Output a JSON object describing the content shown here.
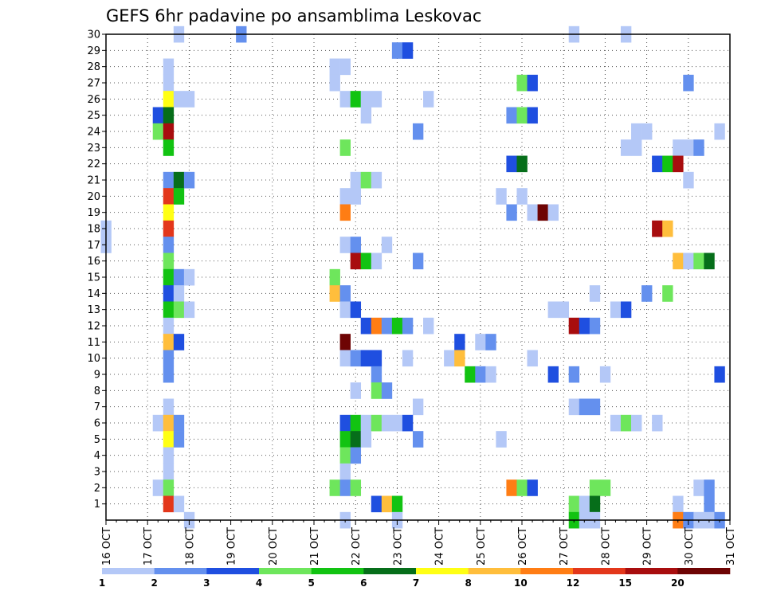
{
  "chart_data": {
    "type": "heatmap",
    "title": "GEFS 6hr padavine po ansamblima Leskovac",
    "xlabel": "",
    "ylabel": "",
    "x_ticks": [
      "16 OCT",
      "17 OCT",
      "18 OCT",
      "19 OCT",
      "20 OCT",
      "21 OCT",
      "22 OCT",
      "23 OCT",
      "24 OCT",
      "25 OCT",
      "26 OCT",
      "27 OCT",
      "28 OCT",
      "29 OCT",
      "30 OCT",
      "31 OCT"
    ],
    "y_ticks": [
      1,
      2,
      3,
      4,
      5,
      6,
      7,
      8,
      9,
      10,
      11,
      12,
      13,
      14,
      15,
      16,
      17,
      18,
      19,
      20,
      21,
      22,
      23,
      24,
      25,
      26,
      27,
      28,
      29,
      30
    ],
    "ylim": [
      0,
      30
    ],
    "x_step_hours": 6,
    "grid": true,
    "colorbar": {
      "levels": [
        "1",
        "2",
        "3",
        "4",
        "5",
        "6",
        "7",
        "8",
        "10",
        "12",
        "15",
        "20",
        ""
      ],
      "colors": [
        "#b4c8f7",
        "#6490ee",
        "#1f4fe0",
        "#6ee65c",
        "#12c312",
        "#066e1a",
        "#ffff14",
        "#ffbe3c",
        "#ff7d14",
        "#e3371b",
        "#a80d0e",
        "#6e0404"
      ]
    },
    "cells": [
      [
        7,
        30,
        1
      ],
      [
        13,
        30,
        2
      ],
      [
        45,
        30,
        1
      ],
      [
        50,
        30,
        1
      ],
      [
        28,
        29,
        2
      ],
      [
        29,
        29,
        3
      ],
      [
        6,
        28,
        1
      ],
      [
        22,
        28,
        1
      ],
      [
        23,
        28,
        1
      ],
      [
        6,
        27,
        1
      ],
      [
        22,
        27,
        1
      ],
      [
        40,
        27,
        4
      ],
      [
        41,
        27,
        3
      ],
      [
        56,
        27,
        2
      ],
      [
        6,
        26,
        7
      ],
      [
        7,
        26,
        1
      ],
      [
        8,
        26,
        1
      ],
      [
        23,
        26,
        1
      ],
      [
        24,
        26,
        5
      ],
      [
        25,
        26,
        1
      ],
      [
        26,
        26,
        1
      ],
      [
        31,
        26,
        1
      ],
      [
        5,
        25,
        3
      ],
      [
        6,
        25,
        6
      ],
      [
        25,
        25,
        1
      ],
      [
        39,
        25,
        2
      ],
      [
        40,
        25,
        4
      ],
      [
        41,
        25,
        3
      ],
      [
        5,
        24,
        4
      ],
      [
        6,
        24,
        11
      ],
      [
        30,
        24,
        2
      ],
      [
        51,
        24,
        1
      ],
      [
        52,
        24,
        1
      ],
      [
        59,
        24,
        1
      ],
      [
        6,
        23,
        5
      ],
      [
        23,
        23,
        4
      ],
      [
        50,
        23,
        1
      ],
      [
        51,
        23,
        1
      ],
      [
        55,
        23,
        1
      ],
      [
        56,
        23,
        1
      ],
      [
        57,
        23,
        2
      ],
      [
        39,
        22,
        3
      ],
      [
        40,
        22,
        6
      ],
      [
        53,
        22,
        3
      ],
      [
        54,
        22,
        5
      ],
      [
        55,
        22,
        11
      ],
      [
        6,
        21,
        2
      ],
      [
        7,
        21,
        6
      ],
      [
        8,
        21,
        2
      ],
      [
        24,
        21,
        1
      ],
      [
        25,
        21,
        4
      ],
      [
        26,
        21,
        1
      ],
      [
        56,
        21,
        1
      ],
      [
        6,
        20,
        10
      ],
      [
        7,
        20,
        5
      ],
      [
        23,
        20,
        1
      ],
      [
        24,
        20,
        1
      ],
      [
        38,
        20,
        1
      ],
      [
        40,
        20,
        1
      ],
      [
        6,
        19,
        7
      ],
      [
        23,
        19,
        9
      ],
      [
        39,
        19,
        2
      ],
      [
        41,
        19,
        1
      ],
      [
        42,
        19,
        12
      ],
      [
        43,
        19,
        1
      ],
      [
        0,
        18,
        1
      ],
      [
        6,
        18,
        10
      ],
      [
        53,
        18,
        11
      ],
      [
        54,
        18,
        8
      ],
      [
        0,
        17,
        1
      ],
      [
        6,
        17,
        2
      ],
      [
        23,
        17,
        1
      ],
      [
        24,
        17,
        2
      ],
      [
        27,
        17,
        1
      ],
      [
        6,
        16,
        4
      ],
      [
        24,
        16,
        11
      ],
      [
        25,
        16,
        5
      ],
      [
        26,
        16,
        1
      ],
      [
        30,
        16,
        2
      ],
      [
        55,
        16,
        8
      ],
      [
        56,
        16,
        1
      ],
      [
        57,
        16,
        4
      ],
      [
        58,
        16,
        6
      ],
      [
        6,
        15,
        5
      ],
      [
        7,
        15,
        2
      ],
      [
        8,
        15,
        1
      ],
      [
        22,
        15,
        4
      ],
      [
        6,
        14,
        3
      ],
      [
        7,
        14,
        1
      ],
      [
        22,
        14,
        8
      ],
      [
        23,
        14,
        2
      ],
      [
        47,
        14,
        1
      ],
      [
        52,
        14,
        2
      ],
      [
        54,
        14,
        4
      ],
      [
        6,
        13,
        5
      ],
      [
        7,
        13,
        4
      ],
      [
        8,
        13,
        1
      ],
      [
        23,
        13,
        1
      ],
      [
        24,
        13,
        3
      ],
      [
        43,
        13,
        1
      ],
      [
        44,
        13,
        1
      ],
      [
        49,
        13,
        1
      ],
      [
        50,
        13,
        3
      ],
      [
        6,
        12,
        1
      ],
      [
        25,
        12,
        3
      ],
      [
        26,
        12,
        9
      ],
      [
        27,
        12,
        2
      ],
      [
        28,
        12,
        5
      ],
      [
        29,
        12,
        2
      ],
      [
        31,
        12,
        1
      ],
      [
        45,
        12,
        11
      ],
      [
        46,
        12,
        3
      ],
      [
        47,
        12,
        2
      ],
      [
        6,
        11,
        8
      ],
      [
        7,
        11,
        3
      ],
      [
        23,
        11,
        12
      ],
      [
        34,
        11,
        3
      ],
      [
        36,
        11,
        1
      ],
      [
        37,
        11,
        2
      ],
      [
        6,
        10,
        2
      ],
      [
        23,
        10,
        1
      ],
      [
        24,
        10,
        2
      ],
      [
        25,
        10,
        3
      ],
      [
        26,
        10,
        3
      ],
      [
        29,
        10,
        1
      ],
      [
        33,
        10,
        1
      ],
      [
        34,
        10,
        8
      ],
      [
        41,
        10,
        1
      ],
      [
        6,
        9,
        2
      ],
      [
        26,
        9,
        2
      ],
      [
        35,
        9,
        5
      ],
      [
        36,
        9,
        2
      ],
      [
        37,
        9,
        1
      ],
      [
        43,
        9,
        3
      ],
      [
        45,
        9,
        2
      ],
      [
        48,
        9,
        1
      ],
      [
        59,
        9,
        3
      ],
      [
        24,
        8,
        1
      ],
      [
        26,
        8,
        4
      ],
      [
        27,
        8,
        2
      ],
      [
        6,
        7,
        1
      ],
      [
        30,
        7,
        1
      ],
      [
        45,
        7,
        1
      ],
      [
        46,
        7,
        2
      ],
      [
        47,
        7,
        2
      ],
      [
        5,
        6,
        1
      ],
      [
        6,
        6,
        8
      ],
      [
        7,
        6,
        2
      ],
      [
        23,
        6,
        3
      ],
      [
        24,
        6,
        5
      ],
      [
        25,
        6,
        1
      ],
      [
        26,
        6,
        4
      ],
      [
        27,
        6,
        1
      ],
      [
        28,
        6,
        1
      ],
      [
        29,
        6,
        3
      ],
      [
        49,
        6,
        1
      ],
      [
        50,
        6,
        4
      ],
      [
        51,
        6,
        1
      ],
      [
        53,
        6,
        1
      ],
      [
        6,
        5,
        7
      ],
      [
        7,
        5,
        2
      ],
      [
        23,
        5,
        5
      ],
      [
        24,
        5,
        6
      ],
      [
        25,
        5,
        1
      ],
      [
        30,
        5,
        2
      ],
      [
        38,
        5,
        1
      ],
      [
        6,
        4,
        1
      ],
      [
        23,
        4,
        4
      ],
      [
        24,
        4,
        2
      ],
      [
        6,
        3,
        1
      ],
      [
        23,
        3,
        1
      ],
      [
        5,
        2,
        1
      ],
      [
        6,
        2,
        4
      ],
      [
        22,
        2,
        4
      ],
      [
        23,
        2,
        2
      ],
      [
        24,
        2,
        4
      ],
      [
        39,
        2,
        9
      ],
      [
        40,
        2,
        4
      ],
      [
        41,
        2,
        3
      ],
      [
        47,
        2,
        4
      ],
      [
        48,
        2,
        4
      ],
      [
        57,
        2,
        1
      ],
      [
        58,
        2,
        2
      ],
      [
        6,
        1,
        10
      ],
      [
        7,
        1,
        1
      ],
      [
        26,
        1,
        3
      ],
      [
        27,
        1,
        8
      ],
      [
        28,
        1,
        5
      ],
      [
        45,
        1,
        4
      ],
      [
        46,
        1,
        1
      ],
      [
        47,
        1,
        6
      ],
      [
        55,
        1,
        1
      ],
      [
        58,
        1,
        2
      ],
      [
        8,
        0,
        1
      ],
      [
        23,
        0,
        1
      ],
      [
        28,
        0,
        1
      ],
      [
        45,
        0,
        5
      ],
      [
        46,
        0,
        1
      ],
      [
        47,
        0,
        1
      ],
      [
        55,
        0,
        9
      ],
      [
        56,
        0,
        2
      ],
      [
        57,
        0,
        1
      ],
      [
        58,
        0,
        1
      ],
      [
        59,
        0,
        2
      ]
    ]
  }
}
